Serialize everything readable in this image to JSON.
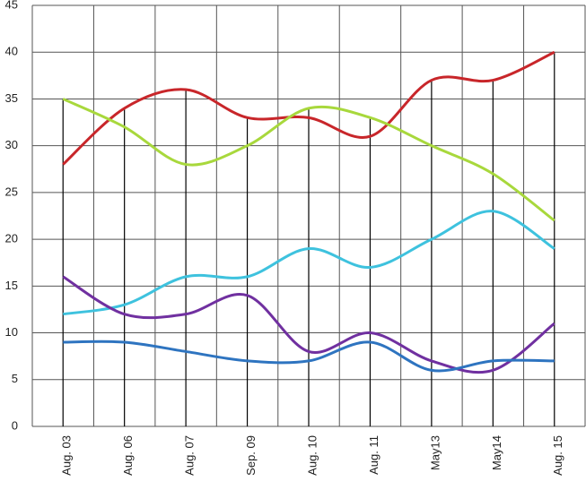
{
  "chart_data": {
    "type": "line",
    "categories": [
      "Aug. 03",
      "Aug. 06",
      "Aug. 07",
      "Sep. 09",
      "Aug. 10",
      "Aug. 11",
      "May13",
      "May14",
      "Aug. 15"
    ],
    "series": [
      {
        "color": "#c8262a",
        "values": [
          28,
          34,
          36,
          33,
          33,
          31,
          37,
          37,
          40
        ]
      },
      {
        "color": "#a8d83c",
        "values": [
          35,
          32,
          28,
          30,
          34,
          33,
          30,
          27,
          22
        ]
      },
      {
        "color": "#3ec2de",
        "values": [
          12,
          13,
          16,
          16,
          19,
          17,
          20,
          23,
          19
        ]
      },
      {
        "color": "#7030a0",
        "values": [
          16,
          12,
          12,
          14,
          8,
          10,
          7,
          6,
          11
        ]
      },
      {
        "color": "#2e74c0",
        "values": [
          9,
          9,
          8,
          7,
          7,
          9,
          6,
          7,
          7
        ]
      }
    ],
    "ylim": [
      0,
      45
    ],
    "yticks": [
      0,
      5,
      10,
      15,
      20,
      25,
      30,
      35,
      40,
      45
    ],
    "grid": true
  }
}
